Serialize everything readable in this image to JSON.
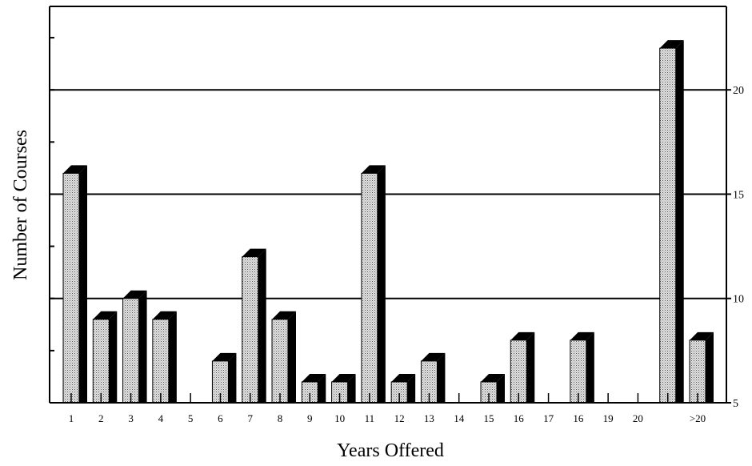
{
  "chart_data": {
    "type": "bar",
    "title": "",
    "xlabel": "Years Offered",
    "ylabel": "Number of Courses",
    "categories": [
      "1",
      "2",
      "3",
      "4",
      "5",
      "6",
      "7",
      "8",
      "9",
      "10",
      "11",
      "12",
      "13",
      "14",
      "15",
      "16",
      "17",
      "16",
      "19",
      "20",
      "",
      ">20"
    ],
    "values": [
      16,
      9,
      10,
      9,
      null,
      7,
      12,
      9,
      6,
      6,
      16,
      6,
      7,
      null,
      6,
      8,
      null,
      8,
      null,
      null,
      22,
      8
    ],
    "ylim": [
      5,
      24
    ],
    "yticks": [
      5,
      10,
      15,
      20
    ],
    "ytick_side": "right",
    "gridlines": [
      10,
      15,
      20
    ],
    "grid": true,
    "legend": "none",
    "colors": {
      "bar_face": "#cfcfcf",
      "bar_depth": "#000000",
      "frame": "#000000"
    }
  }
}
